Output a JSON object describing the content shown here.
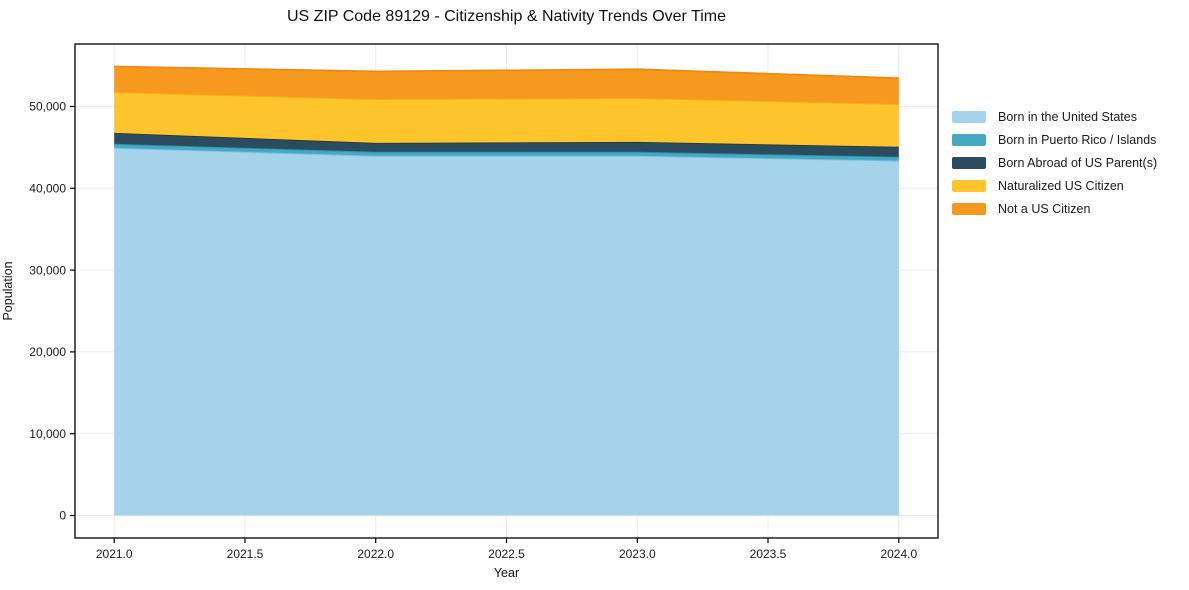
{
  "title": "US ZIP Code 89129 - Citizenship & Nativity Trends Over Time",
  "chart_data": {
    "type": "area",
    "stacked": true,
    "title": "US ZIP Code 89129 - Citizenship & Nativity Trends Over Time",
    "xlabel": "Year",
    "ylabel": "Population",
    "x": [
      2021,
      2022,
      2023,
      2024
    ],
    "series": [
      {
        "name": "Born in the United States",
        "color": "#A5D3E9",
        "edge": "#7FC0DE",
        "values": [
          44950,
          43980,
          43980,
          43380
        ]
      },
      {
        "name": "Born in Puerto Rico / Islands",
        "color": "#45A9C4",
        "edge": "#2E90AE",
        "values": [
          490,
          490,
          490,
          480
        ]
      },
      {
        "name": "Born Abroad of US Parent(s)",
        "color": "#2B4C5F",
        "edge": "#1E3846",
        "values": [
          1340,
          1090,
          1210,
          1220
        ]
      },
      {
        "name": "Naturalized US Citizen",
        "color": "#FDC42C",
        "edge": "#F2B113",
        "values": [
          4980,
          5340,
          5350,
          5220
        ]
      },
      {
        "name": "Not a US Citizen",
        "color": "#F8991F",
        "edge": "#EF8A10",
        "values": [
          3140,
          3400,
          3520,
          3160
        ]
      }
    ],
    "stacked_totals": [
      54900,
      54300,
      54550,
      53460
    ],
    "xticks": [
      2021.0,
      2021.5,
      2022.0,
      2022.5,
      2023.0,
      2023.5,
      2024.0
    ],
    "xtick_labels": [
      "2021.0",
      "2021.5",
      "2022.0",
      "2022.5",
      "2023.0",
      "2023.5",
      "2024.0"
    ],
    "yticks": [
      0,
      10000,
      20000,
      30000,
      40000,
      50000
    ],
    "ytick_labels": [
      "0",
      "10,000",
      "20,000",
      "30,000",
      "40,000",
      "50,000"
    ],
    "xlim": [
      2020.85,
      2024.15
    ],
    "ylim": [
      -2745,
      57645
    ],
    "grid": true,
    "grid_color": "#ebebeb",
    "frame_color": "#000000",
    "tick_color": "#000000",
    "text_color": "#1a1a1a",
    "legend_position": "right"
  }
}
